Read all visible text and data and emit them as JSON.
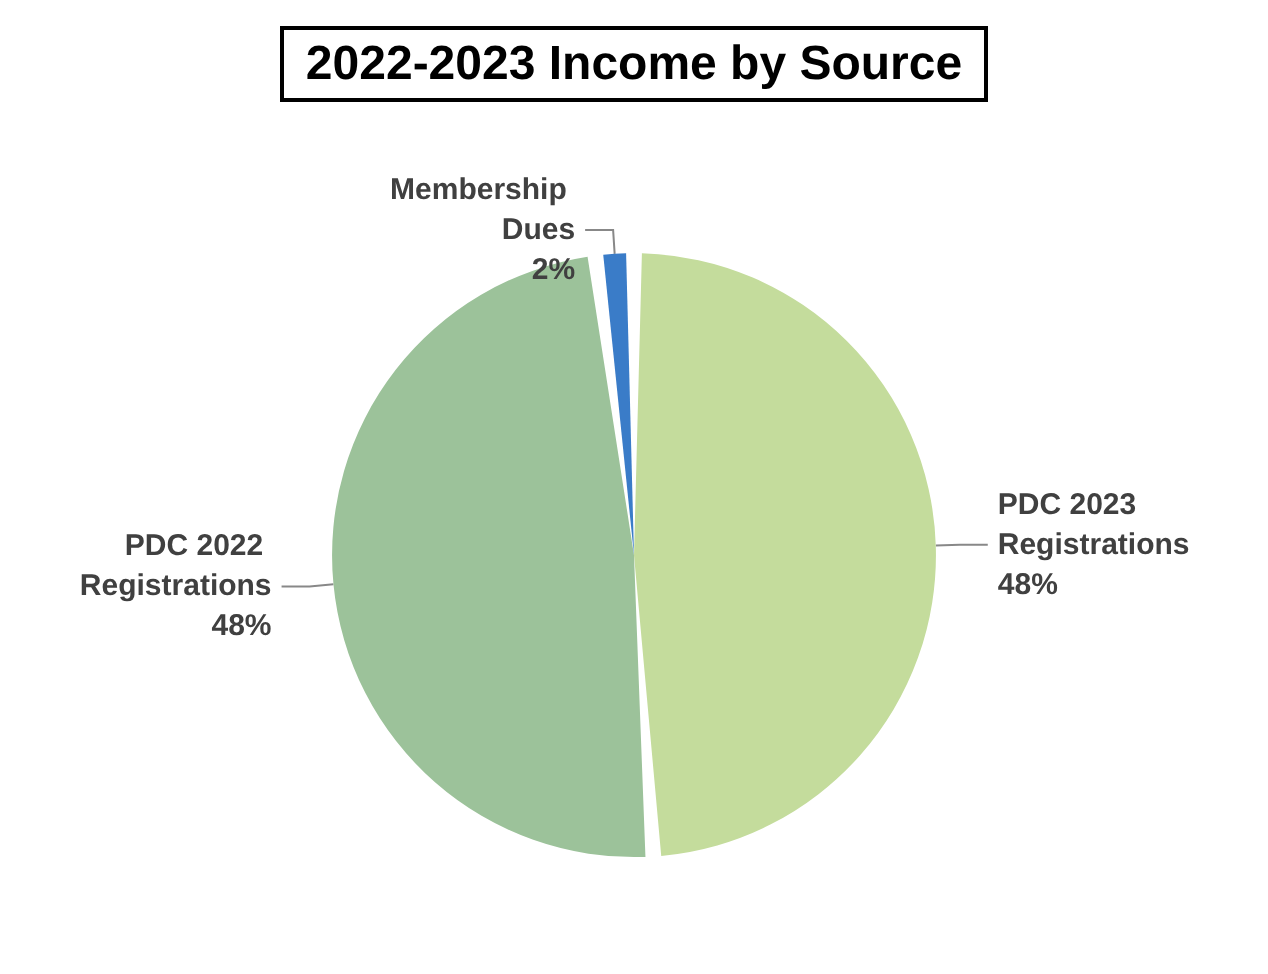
{
  "chart_data": {
    "type": "pie",
    "title": "2022-2023 Income by Source",
    "categories": [
      "PDC 2023 Registrations",
      "PDC 2022 Registrations",
      "Membership Dues"
    ],
    "values": [
      48,
      48,
      2
    ],
    "value_labels": [
      "48%",
      "48%",
      "2%"
    ],
    "colors": [
      "#c4dc9c",
      "#9cc29a",
      "#3a7cc8"
    ],
    "legend": false
  }
}
